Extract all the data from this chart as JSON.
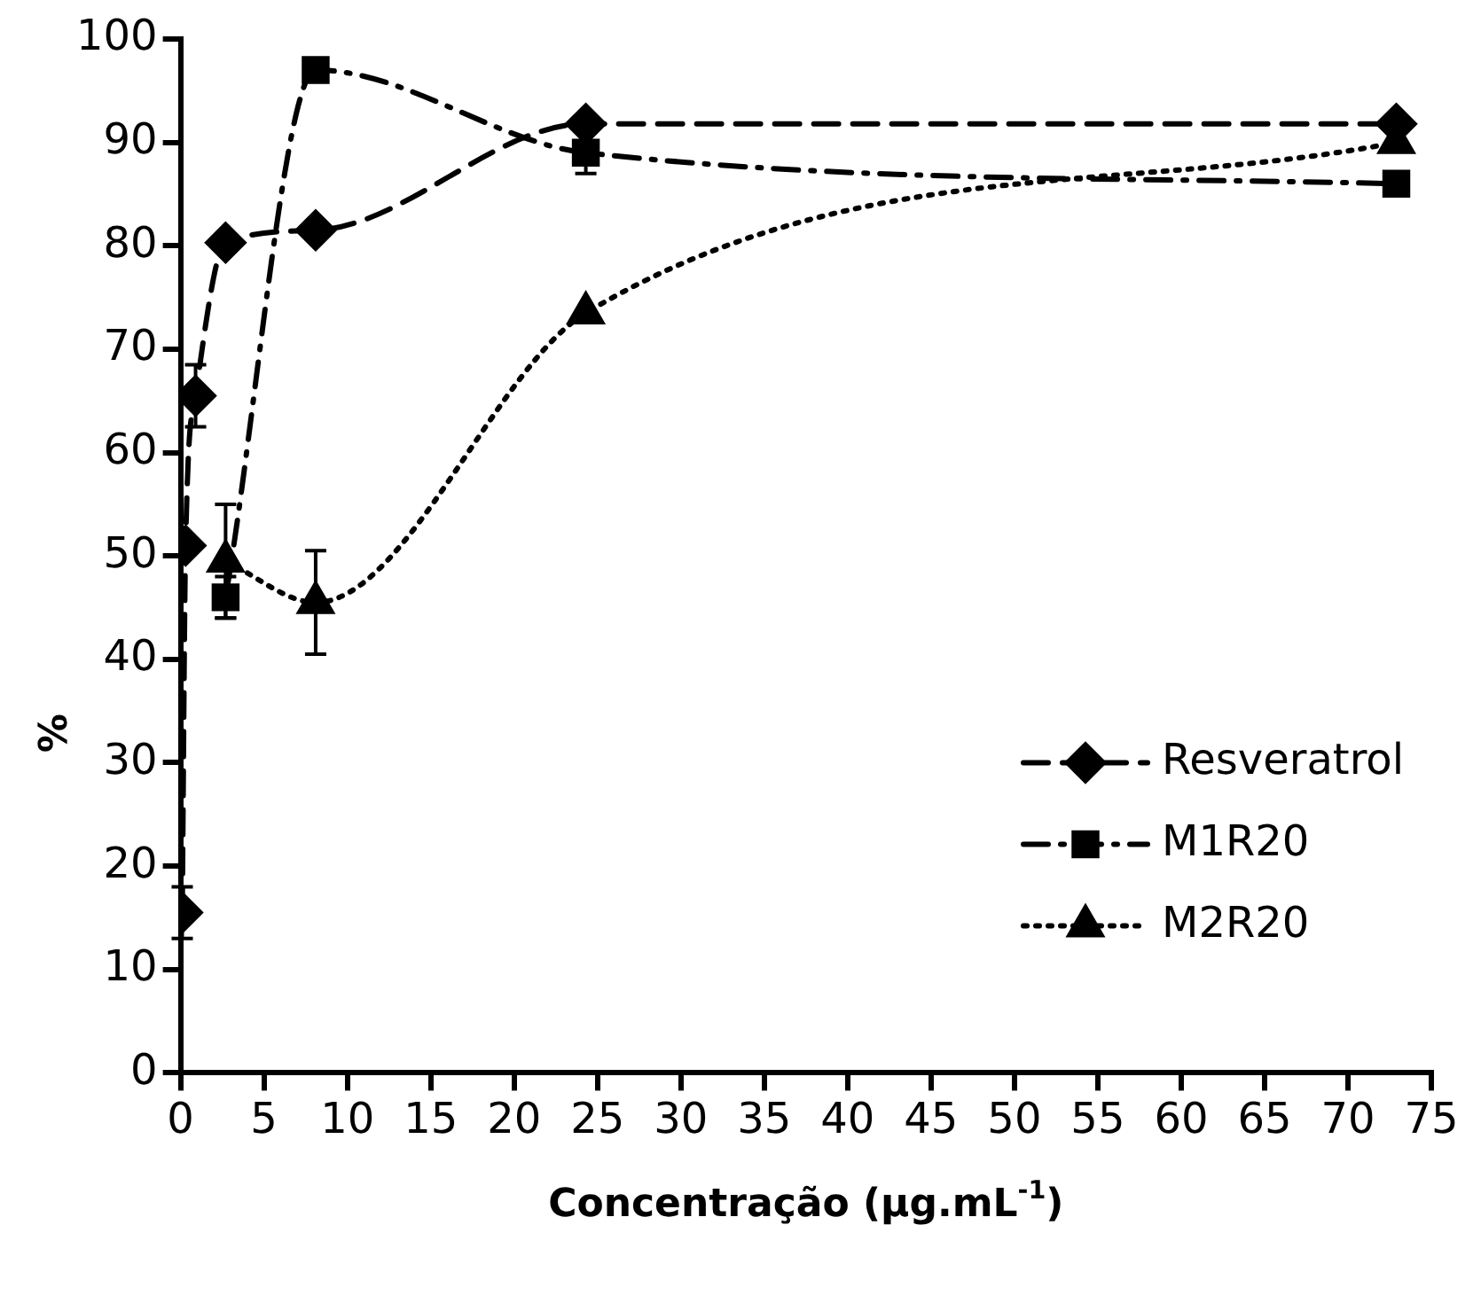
{
  "chart_data": {
    "type": "line",
    "xlabel": "Concentração (μg.mL$^{-1}$)",
    "ylabel": "%",
    "xlim": [
      0,
      75
    ],
    "xticks": [
      0,
      5,
      10,
      15,
      20,
      25,
      30,
      35,
      40,
      45,
      50,
      55,
      60,
      65,
      70,
      75
    ],
    "ylim": [
      0,
      100
    ],
    "yticks": [
      0,
      10,
      20,
      30,
      40,
      50,
      60,
      70,
      80,
      90,
      100
    ],
    "grid": false,
    "legend": "bottom right",
    "series": [
      {
        "name": "Resveratrol",
        "color": "#000000",
        "marker": "diamond",
        "line_style": "dashed",
        "x": [
          0.1,
          0.3,
          0.9,
          2.7,
          8.1,
          24.3,
          72.9
        ],
        "values": [
          15.5,
          51,
          65.5,
          80.3,
          81.5,
          91.8,
          91.8
        ],
        "errors": [
          2.5,
          null,
          3,
          null,
          null,
          null,
          null
        ]
      },
      {
        "name": "M1R20",
        "color": "#000000",
        "marker": "square",
        "line_style": "dashdot",
        "x": [
          2.7,
          8.1,
          24.3,
          72.9
        ],
        "values": [
          46,
          97,
          89,
          86
        ],
        "errors": [
          2,
          null,
          2,
          null
        ]
      },
      {
        "name": "M2R20",
        "color": "#000000",
        "marker": "triangle",
        "line_style": "dotted",
        "x": [
          2.7,
          8.1,
          24.3,
          72.9
        ],
        "values": [
          49.5,
          45.5,
          73.5,
          90
        ],
        "errors": [
          5.5,
          5,
          null,
          null
        ]
      }
    ]
  }
}
